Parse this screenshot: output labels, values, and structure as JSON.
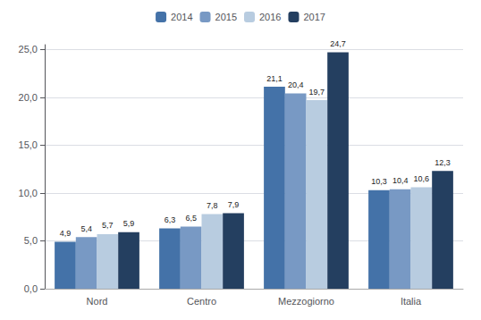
{
  "chart_data": {
    "type": "bar",
    "categories": [
      "Nord",
      "Centro",
      "Mezzogiorno",
      "Italia"
    ],
    "series": [
      {
        "name": "2014",
        "color": "#4472a8",
        "values": [
          4.9,
          6.3,
          21.1,
          10.3
        ],
        "value_labels": [
          "4,9",
          "6,3",
          "21,1",
          "10,3"
        ]
      },
      {
        "name": "2015",
        "color": "#7899c4",
        "values": [
          5.4,
          6.5,
          20.4,
          10.4
        ],
        "value_labels": [
          "5,4",
          "6,5",
          "20,4",
          "10,4"
        ]
      },
      {
        "name": "2016",
        "color": "#b8cce0",
        "values": [
          5.7,
          7.8,
          19.7,
          10.6
        ],
        "value_labels": [
          "5,7",
          "7,8",
          "19,7",
          "10,6"
        ]
      },
      {
        "name": "2017",
        "color": "#243f60",
        "values": [
          5.9,
          7.9,
          24.7,
          12.3
        ],
        "value_labels": [
          "5,9",
          "7,9",
          "24,7",
          "12,3"
        ]
      }
    ],
    "ylim": [
      0,
      25.5
    ],
    "yticks": [
      {
        "value": 0,
        "label": "0,0"
      },
      {
        "value": 5,
        "label": "5,0"
      },
      {
        "value": 10,
        "label": "10,0"
      },
      {
        "value": 15,
        "label": "15,0"
      },
      {
        "value": 20,
        "label": "20,0"
      },
      {
        "value": 25,
        "label": "25,0"
      }
    ],
    "grid": true,
    "legend": "top",
    "data_labels": true
  }
}
